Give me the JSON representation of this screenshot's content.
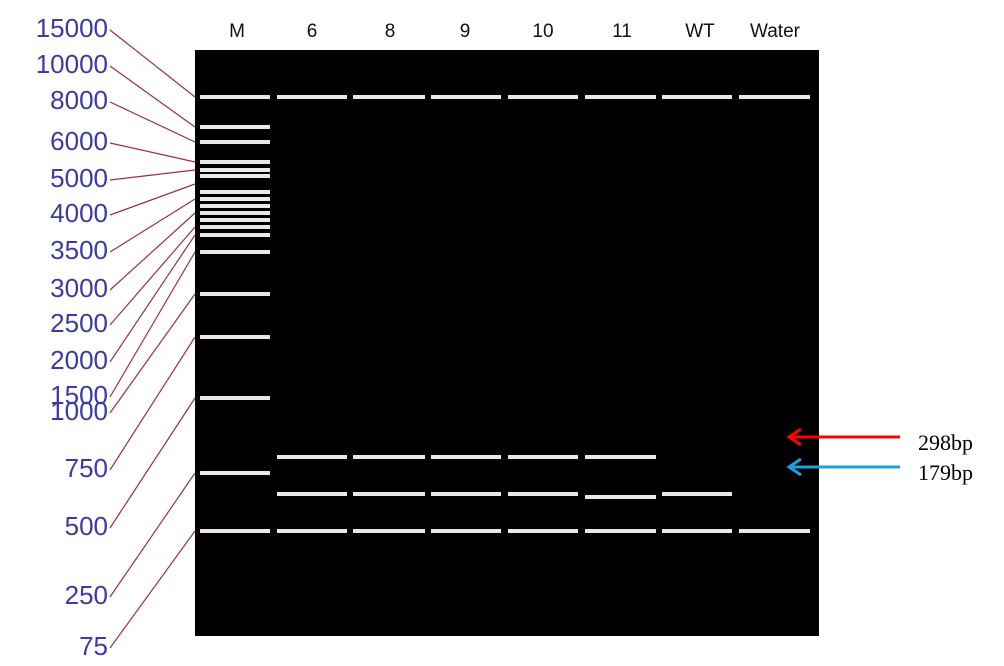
{
  "ladder": {
    "labels": [
      "15000",
      "10000",
      "8000",
      "6000",
      "5000",
      "4000",
      "3500",
      "3000",
      "2500",
      "2000",
      "1500",
      "1000",
      "750",
      "500",
      "250",
      "75"
    ]
  },
  "lanes": {
    "labels": [
      "M",
      "6",
      "8",
      "9",
      "10",
      "11",
      "WT",
      "Water"
    ]
  },
  "annotations": [
    {
      "label": "298bp",
      "color": "#ff0000"
    },
    {
      "label": "179bp",
      "color": "#1ba1e2"
    }
  ]
}
